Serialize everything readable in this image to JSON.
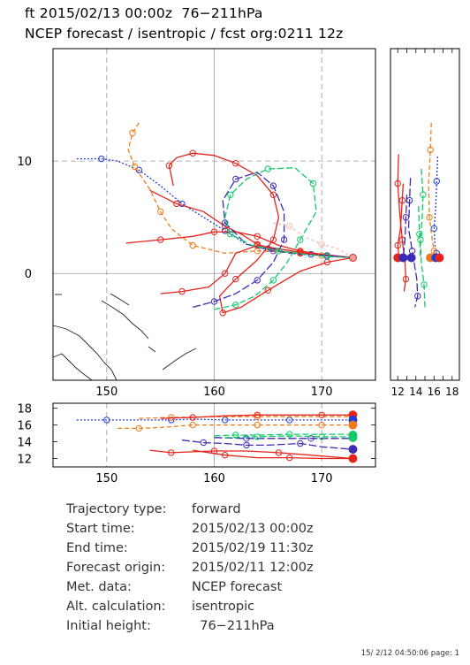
{
  "header": {
    "line1": "ft 2015/02/13 00:00z  76−211hPa",
    "line2": "NCEP forecast / isentropic / fcst org:0211 12z"
  },
  "chart_data": [
    {
      "type": "line",
      "title": "",
      "xlim": [
        145,
        175
      ],
      "ylim": [
        -9.5,
        20
      ],
      "x_ticks": [
        150,
        160,
        170
      ],
      "y_ticks": [
        0,
        10
      ],
      "grid": true,
      "series": [
        {
          "color": "#1f3fd6",
          "dash": "2,2",
          "x": [
            147.2,
            149.5,
            151.0,
            153.0,
            155.0,
            157.0,
            159.0,
            161.0,
            163.0,
            165.0,
            167.0,
            169.0,
            171.0,
            172.9
          ],
          "y": [
            10.2,
            10.2,
            10.0,
            9.2,
            7.8,
            6.2,
            5.0,
            3.8,
            2.6,
            2.2,
            1.9,
            1.7,
            1.6,
            1.4
          ]
        },
        {
          "color": "#f07b1a",
          "dash": "5,3",
          "x": [
            153.0,
            152.4,
            152.0,
            152.6,
            154.0,
            155.0,
            156.0,
            158.0,
            161.0,
            164.0,
            167.0,
            170.0,
            172.9
          ],
          "y": [
            13.4,
            12.5,
            11.0,
            9.5,
            7.5,
            5.5,
            4.0,
            2.5,
            1.8,
            2.0,
            1.9,
            1.6,
            1.4
          ]
        },
        {
          "color": "#e5231c",
          "dash": "",
          "x": [
            151.8,
            155.0,
            158.0,
            160.0,
            162.0,
            164.0,
            166.0,
            168.0,
            170.0,
            172.9
          ],
          "y": [
            2.7,
            3.0,
            3.3,
            3.7,
            3.7,
            3.3,
            2.5,
            2.0,
            1.7,
            1.4
          ]
        },
        {
          "color": "#e5231c",
          "dash": "",
          "x": [
            156.2,
            155.8,
            156.5,
            158.0,
            160.0,
            162.0,
            164.0,
            165.5,
            166.0,
            165.5,
            164.0,
            162.0,
            160.5,
            160.8,
            162.5,
            165.0,
            168.0,
            170.5,
            172.9
          ],
          "y": [
            7.8,
            9.6,
            10.3,
            10.7,
            10.5,
            9.8,
            8.7,
            7.0,
            5.0,
            3.0,
            1.2,
            -0.5,
            -2.0,
            -3.5,
            -3.0,
            -1.5,
            0.2,
            1.0,
            1.4
          ]
        },
        {
          "color": "#e5231c",
          "dash": "",
          "x": [
            154.0,
            156.5,
            159.0,
            161.0,
            162.5,
            164.0,
            166.0,
            168.0,
            170.0,
            172.9
          ],
          "y": [
            7.4,
            6.2,
            5.5,
            4.2,
            3.5,
            2.6,
            2.0,
            1.8,
            1.6,
            1.4
          ]
        },
        {
          "color": "#e5231c",
          "dash": "",
          "x": [
            155.0,
            157.0,
            159.5,
            161.0,
            162.0,
            164.0,
            166.0,
            168.0,
            170.0,
            172.9
          ],
          "y": [
            -1.8,
            -1.6,
            -1.2,
            0.0,
            1.8,
            2.5,
            2.2,
            1.9,
            1.6,
            1.4
          ]
        },
        {
          "color": "#3d2bb5",
          "dash": "9,3",
          "x": [
            158.0,
            160.0,
            162.0,
            164.0,
            165.5,
            166.5,
            166.5,
            165.5,
            164.0,
            162.0,
            160.8,
            161.0,
            163.0,
            165.5,
            168.0,
            170.5,
            172.9
          ],
          "y": [
            -3.0,
            -2.5,
            -1.8,
            -0.6,
            1.0,
            3.0,
            5.5,
            7.8,
            9.0,
            8.4,
            6.5,
            4.5,
            2.6,
            2.0,
            1.7,
            1.6,
            1.4
          ]
        },
        {
          "color": "#12c96a",
          "dash": "7,3",
          "x": [
            160.0,
            162.0,
            163.8,
            165.5,
            166.8,
            168.0,
            169.5,
            169.2,
            167.5,
            165.0,
            163.0,
            161.5,
            161.0,
            161.5,
            163.5,
            166.0,
            168.5,
            170.5,
            172.9
          ],
          "y": [
            -3.2,
            -2.8,
            -2.0,
            -0.6,
            1.0,
            3.0,
            5.5,
            8.0,
            9.4,
            9.3,
            8.4,
            7.0,
            5.0,
            3.5,
            2.5,
            2.0,
            1.7,
            1.5,
            1.4
          ]
        },
        {
          "color": "#f8b8b8",
          "dash": "3,3",
          "x": [
            165.5,
            167.0,
            168.5,
            170.0,
            171.5,
            172.9
          ],
          "y": [
            4.5,
            4.2,
            3.2,
            2.6,
            2.2,
            1.4
          ]
        }
      ]
    },
    {
      "type": "line",
      "title": "",
      "xlim": [
        11.2,
        18.8
      ],
      "ylim": [
        -9.5,
        20
      ],
      "x_ticks": [
        12,
        14,
        16,
        18
      ],
      "grid": false,
      "series": [
        {
          "color": "#1f3fd6",
          "dash": "2,2",
          "x": [
            16.4,
            16.3,
            16.2,
            16.0,
            16.1,
            16.3,
            16.3
          ],
          "y": [
            10.4,
            8.2,
            6.0,
            4.0,
            2.5,
            1.8,
            1.4
          ]
        },
        {
          "color": "#f07b1a",
          "dash": "5,3",
          "x": [
            15.7,
            15.6,
            15.4,
            15.5,
            15.8,
            16.0,
            15.9
          ],
          "y": [
            13.4,
            11.0,
            8.0,
            5.0,
            3.0,
            2.0,
            1.4
          ]
        },
        {
          "color": "#e5231c",
          "dash": "",
          "x": [
            12.1,
            12.0,
            12.2,
            12.5,
            12.8,
            12.9,
            12.7
          ],
          "y": [
            10.6,
            8.0,
            5.5,
            3.0,
            1.0,
            -0.5,
            -1.6
          ]
        },
        {
          "color": "#e5231c",
          "dash": "",
          "x": [
            12.6,
            12.5,
            12.3,
            12.0,
            12.1,
            12.3
          ],
          "y": [
            8.0,
            6.5,
            4.0,
            2.5,
            1.8,
            1.4
          ]
        },
        {
          "color": "#3d2bb5",
          "dash": "9,3",
          "x": [
            13.4,
            13.3,
            13.2,
            13.6,
            14.1,
            14.2,
            13.9
          ],
          "y": [
            8.5,
            6.5,
            4.0,
            2.0,
            -0.5,
            -2.0,
            -3.0
          ]
        },
        {
          "color": "#3d2bb5",
          "dash": "9,3",
          "x": [
            13.0,
            12.9,
            12.8,
            12.6
          ],
          "y": [
            7.0,
            5.0,
            3.0,
            1.4
          ]
        },
        {
          "color": "#12c96a",
          "dash": "7,3",
          "x": [
            14.6,
            14.8,
            14.7,
            14.5,
            14.6,
            14.9,
            15.0
          ],
          "y": [
            9.3,
            7.0,
            5.0,
            3.0,
            1.0,
            -1.0,
            -3.0
          ]
        },
        {
          "color": "#12c96a",
          "dash": "7,3",
          "x": [
            14.3,
            14.4,
            14.5
          ],
          "y": [
            6.0,
            3.5,
            1.4
          ]
        }
      ]
    },
    {
      "type": "line",
      "title": "",
      "xlim": [
        145,
        175
      ],
      "ylim": [
        11,
        18.6
      ],
      "x_ticks": [
        150,
        160,
        170
      ],
      "y_ticks": [
        12,
        14,
        16,
        18
      ],
      "grid": true,
      "series": [
        {
          "color": "#1f3fd6",
          "dash": "2,2",
          "x": [
            147.2,
            150,
            153,
            156,
            158,
            161,
            164,
            167,
            170,
            172.9
          ],
          "y": [
            16.6,
            16.6,
            16.6,
            16.6,
            16.7,
            16.6,
            16.6,
            16.6,
            16.6,
            16.6
          ]
        },
        {
          "color": "#f07b1a",
          "dash": "5,3",
          "x": [
            151.0,
            153.0,
            155.0,
            158.0,
            161.0,
            164.0,
            167.0,
            170.0,
            172.9
          ],
          "y": [
            15.6,
            15.6,
            15.7,
            16.0,
            16.0,
            16.0,
            16.0,
            16.0,
            16.0
          ]
        },
        {
          "color": "#f07b1a",
          "dash": "5,3",
          "x": [
            153.0,
            156.0,
            160.0,
            164.0,
            168.0,
            172.9
          ],
          "y": [
            16.8,
            16.9,
            17.0,
            17.0,
            17.0,
            17.0
          ]
        },
        {
          "color": "#e5231c",
          "dash": "",
          "x": [
            155.0,
            158.0,
            161.0,
            164.0,
            167.0,
            170.0,
            172.9
          ],
          "y": [
            16.8,
            16.9,
            17.1,
            17.2,
            17.2,
            17.2,
            17.2
          ]
        },
        {
          "color": "#e5231c",
          "dash": "",
          "x": [
            154.0,
            156.0,
            158.0,
            160.0,
            163.0,
            166.0,
            169.0,
            172.9
          ],
          "y": [
            13.0,
            12.7,
            12.8,
            12.9,
            12.9,
            12.7,
            12.4,
            12.0
          ]
        },
        {
          "color": "#e5231c",
          "dash": "",
          "x": [
            158.0,
            161.0,
            164.0,
            167.0,
            170.0,
            172.9
          ],
          "y": [
            13.0,
            12.4,
            12.1,
            12.1,
            12.0,
            12.0
          ]
        },
        {
          "color": "#3d2bb5",
          "dash": "9,3",
          "x": [
            157.0,
            159.0,
            161.0,
            163.0,
            165.0,
            168.0,
            170.0,
            172.9
          ],
          "y": [
            14.2,
            13.9,
            13.8,
            13.6,
            13.6,
            13.8,
            13.4,
            13.1
          ]
        },
        {
          "color": "#3d2bb5",
          "dash": "9,3",
          "x": [
            160.0,
            163.0,
            166.0,
            169.0,
            172.9
          ],
          "y": [
            14.5,
            14.4,
            14.4,
            14.4,
            14.4
          ]
        },
        {
          "color": "#12c96a",
          "dash": "7,3",
          "x": [
            160.0,
            162.0,
            164.0,
            167.0,
            170.0,
            172.9
          ],
          "y": [
            14.7,
            14.8,
            14.8,
            14.9,
            14.9,
            14.9
          ]
        },
        {
          "color": "#12c96a",
          "dash": "7,3",
          "x": [
            161.0,
            164.0,
            167.0,
            170.0,
            172.9
          ],
          "y": [
            14.5,
            14.6,
            14.7,
            14.6,
            14.6
          ]
        }
      ]
    }
  ],
  "info": {
    "trajectory_type_label": "Trajectory type:",
    "trajectory_type_value": "forward",
    "start_time_label": "Start time:",
    "start_time_value": "2015/02/13 00:00z",
    "end_time_label": "End time:",
    "end_time_value": "2015/02/19 11:30z",
    "forecast_origin_label": "Forecast origin:",
    "forecast_origin_value": "2015/02/11 12:00z",
    "met_data_label": "Met. data:",
    "met_data_value": "NCEP forecast",
    "alt_calc_label": "Alt. calculation:",
    "alt_calc_value": "isentropic",
    "initial_height_label": "Initial height:",
    "initial_height_value": "  76−211hPa"
  },
  "footer": "15/ 2/12 04:50:06 page: 1"
}
